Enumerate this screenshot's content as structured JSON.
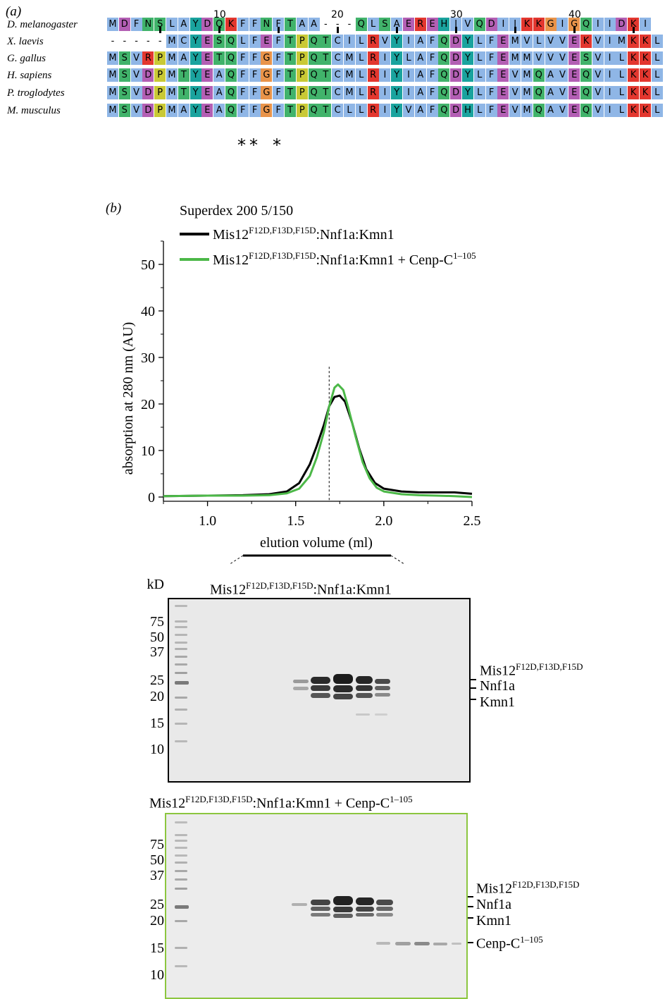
{
  "panel_a_label": "(a)",
  "panel_b_label": "(b)",
  "alignment": {
    "position_ticks": [
      "10",
      "20",
      "30",
      "40"
    ],
    "species": [
      {
        "name": "D. melanogaster",
        "seq": "MDFNSLAYDQKFFNFTAA---QLSAEREHIVQDIIKKGIGQIIDKI"
      },
      {
        "name": "X. laevis",
        "seq": "-----MCYESQLFEFTPQTCILRVYIAFQDYLFEMVLVVEKVIMKKL"
      },
      {
        "name": "G. gallus",
        "seq": "MSVRPMAYETQFFGFTPQTCMLRIYLAFQDYLFEMMVVVESVILKKL"
      },
      {
        "name": "H. sapiens",
        "seq": "MSVDPMTYEAQFFGFTPQTCMLRIYIAFQDYLFEVMQAVEQVILKKL"
      },
      {
        "name": "P. troglodytes",
        "seq": "MSVDPMTYEAQFFGFTPQTCMLRIYIAFQDYLFEVMQAVEQVILKKL"
      },
      {
        "name": "M. musculus",
        "seq": "MSVDPMAYEAQFFGFTPQTCLLRIYVAFQDHLFEVMQAVEQVILKKL"
      }
    ],
    "stars": [
      "*",
      "*",
      "*"
    ]
  },
  "chart_data": {
    "type": "line",
    "title": "Superdex 200 5/150",
    "xlabel": "elution volume (ml)",
    "ylabel": "absorption at 280 nm (AU)",
    "xlim": [
      0.75,
      2.5
    ],
    "ylim": [
      0,
      55
    ],
    "xticks": [
      "1.0",
      "1.5",
      "2.0",
      "2.5"
    ],
    "yticks": [
      "0",
      "10",
      "20",
      "30",
      "40",
      "50"
    ],
    "vline_x": 1.69,
    "series": [
      {
        "name_base": "Mis12",
        "name_sup": "F12D,F13D,F15D",
        "name_rest": ":Nnf1a:Kmn1",
        "color": "#000000",
        "x": [
          0.75,
          1.0,
          1.2,
          1.35,
          1.45,
          1.52,
          1.58,
          1.62,
          1.66,
          1.69,
          1.72,
          1.75,
          1.78,
          1.82,
          1.86,
          1.9,
          1.95,
          2.0,
          2.1,
          2.2,
          2.3,
          2.4,
          2.5
        ],
        "y": [
          0.2,
          0.3,
          0.4,
          0.6,
          1.2,
          3.0,
          7.0,
          11.0,
          15.5,
          19.5,
          21.5,
          21.8,
          20.5,
          16.0,
          10.5,
          6.0,
          3.0,
          1.8,
          1.2,
          1.0,
          1.0,
          1.0,
          0.7
        ]
      },
      {
        "name_base": "Mis12",
        "name_sup": "F12D,F13D,F15D",
        "name_rest": ":Nnf1a:Kmn1 + Cenp-C",
        "name_sup2": "1–105",
        "color": "#4cb848",
        "x": [
          0.75,
          1.0,
          1.2,
          1.35,
          1.45,
          1.52,
          1.58,
          1.62,
          1.66,
          1.69,
          1.72,
          1.74,
          1.77,
          1.8,
          1.84,
          1.88,
          1.92,
          1.96,
          2.0,
          2.1,
          2.2,
          2.3,
          2.4,
          2.5
        ],
        "y": [
          0.2,
          0.3,
          0.3,
          0.4,
          0.8,
          1.8,
          4.5,
          8.5,
          14.0,
          19.5,
          23.5,
          24.2,
          23.0,
          19.0,
          13.0,
          7.5,
          4.0,
          2.0,
          1.2,
          0.6,
          0.4,
          0.3,
          0.2,
          0.0
        ]
      }
    ]
  },
  "gel1": {
    "kd_label": "kD",
    "title_base": "Mis12",
    "title_sup": "F12D,F13D,F15D",
    "title_rest": ":Nnf1a:Kmn1",
    "markers": [
      "75",
      "50",
      "37",
      "25",
      "20",
      "15",
      "10"
    ],
    "bands": [
      {
        "base": "Mis12",
        "sup": "F12D,F13D,F15D"
      },
      {
        "base": "Nnf1a",
        "sup": ""
      },
      {
        "base": "Kmn1",
        "sup": ""
      }
    ]
  },
  "gel2": {
    "title_base": "Mis12",
    "title_sup": "F12D,F13D,F15D",
    "title_rest": ":Nnf1a:Kmn1 + Cenp-C",
    "title_sup2": "1–105",
    "markers": [
      "75",
      "50",
      "37",
      "25",
      "20",
      "15",
      "10"
    ],
    "bands": [
      {
        "base": "Mis12",
        "sup": "F12D,F13D,F15D"
      },
      {
        "base": "Nnf1a",
        "sup": ""
      },
      {
        "base": "Kmn1",
        "sup": ""
      },
      {
        "base": "Cenp-C",
        "sup": "1–105"
      }
    ]
  },
  "colors": {
    "blue": "#8fb6e6",
    "green": "#41b36b",
    "teal": "#1aa39e",
    "purple": "#b35fb4",
    "orange": "#e9944a",
    "red": "#e3372f",
    "yellow": "#c9c935",
    "gel_border_2": "#8cc63f"
  }
}
